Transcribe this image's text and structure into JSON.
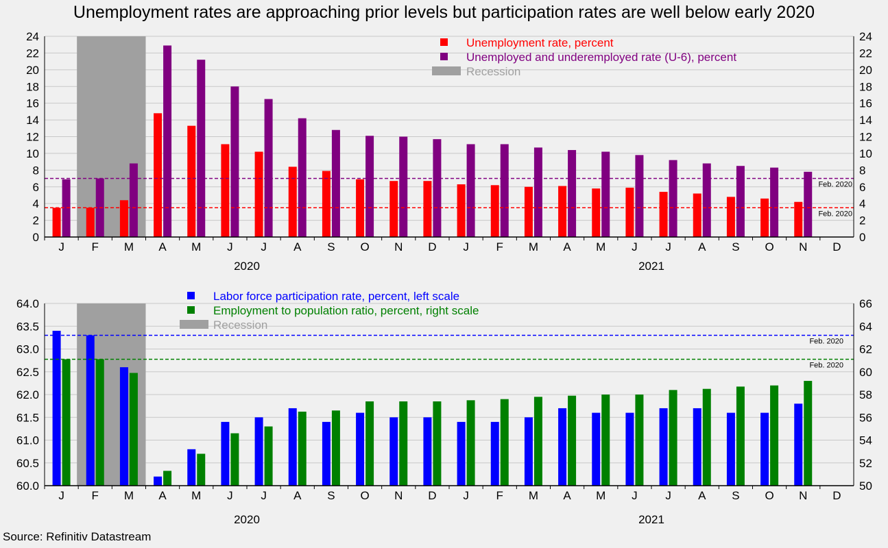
{
  "title": "Unemployment rates are approaching prior levels but participation rates are well below early 2020",
  "source": "Source: Refinitiv Datastream",
  "colors": {
    "unemployment": "#ff0000",
    "u6": "#800080",
    "lfpr": "#0000ff",
    "epop": "#008000",
    "recession": "#a0a0a0",
    "grid": "#c8c8c8"
  },
  "chart_data": [
    {
      "type": "bar",
      "categories": [
        "J",
        "F",
        "M",
        "A",
        "M",
        "J",
        "J",
        "A",
        "S",
        "O",
        "N",
        "D",
        "J",
        "F",
        "M",
        "A",
        "M",
        "J",
        "J",
        "A",
        "S",
        "O",
        "N",
        "D"
      ],
      "year_labels": [
        {
          "label": "2020",
          "start": 0,
          "end": 11
        },
        {
          "label": "2021",
          "start": 12,
          "end": 23
        }
      ],
      "ylim": [
        0,
        24
      ],
      "y_ticks": [
        0,
        2,
        4,
        6,
        8,
        10,
        12,
        14,
        16,
        18,
        20,
        22,
        24
      ],
      "series": [
        {
          "name": "Unemployment rate, percent",
          "color": "#ff0000",
          "values": [
            3.5,
            3.5,
            4.4,
            14.8,
            13.3,
            11.1,
            10.2,
            8.4,
            7.9,
            6.9,
            6.7,
            6.7,
            6.3,
            6.2,
            6.0,
            6.1,
            5.8,
            5.9,
            5.4,
            5.2,
            4.8,
            4.6,
            4.2,
            null
          ]
        },
        {
          "name": "Unemployed and underemployed rate (U-6), percent",
          "color": "#800080",
          "values": [
            6.9,
            7.0,
            8.8,
            22.9,
            21.2,
            18.0,
            16.5,
            14.2,
            12.8,
            12.1,
            12.0,
            11.7,
            11.1,
            11.1,
            10.7,
            10.4,
            10.2,
            9.8,
            9.2,
            8.8,
            8.5,
            8.3,
            7.8,
            null
          ]
        }
      ],
      "recession": {
        "label": "Recession",
        "start_index": 1,
        "end_index": 2
      },
      "reference_lines": [
        {
          "label": "Feb. 2020",
          "value": 7.0,
          "color": "#800080"
        },
        {
          "label": "Feb. 2020",
          "value": 3.5,
          "color": "#ff0000"
        }
      ],
      "legend_position": "top-center"
    },
    {
      "type": "bar",
      "categories": [
        "J",
        "F",
        "M",
        "A",
        "M",
        "J",
        "J",
        "A",
        "S",
        "O",
        "N",
        "D",
        "J",
        "F",
        "M",
        "A",
        "M",
        "J",
        "J",
        "A",
        "S",
        "O",
        "N",
        "D"
      ],
      "year_labels": [
        {
          "label": "2020",
          "start": 0,
          "end": 11
        },
        {
          "label": "2021",
          "start": 12,
          "end": 23
        }
      ],
      "ylim_left": [
        60.0,
        64.0
      ],
      "y_ticks_left": [
        "60.0",
        "60.5",
        "61.0",
        "61.5",
        "62.0",
        "62.5",
        "63.0",
        "63.5",
        "64.0"
      ],
      "ylim_right": [
        50,
        66
      ],
      "y_ticks_right": [
        50,
        52,
        54,
        56,
        58,
        60,
        62,
        64,
        66
      ],
      "series": [
        {
          "name": "Labor force participation rate, percent, left scale",
          "color": "#0000ff",
          "axis": "left",
          "values": [
            63.4,
            63.3,
            62.6,
            60.2,
            60.8,
            61.4,
            61.5,
            61.7,
            61.4,
            61.6,
            61.5,
            61.5,
            61.4,
            61.4,
            61.5,
            61.7,
            61.6,
            61.6,
            61.7,
            61.7,
            61.6,
            61.6,
            61.8,
            null
          ]
        },
        {
          "name": "Employment to population ratio, percent, right scale",
          "color": "#008000",
          "axis": "right",
          "values": [
            61.1,
            61.1,
            59.9,
            51.3,
            52.8,
            54.6,
            55.2,
            56.5,
            56.6,
            57.4,
            57.4,
            57.4,
            57.5,
            57.6,
            57.8,
            57.9,
            58.0,
            58.0,
            58.4,
            58.5,
            58.7,
            58.8,
            59.2,
            null
          ]
        }
      ],
      "recession": {
        "label": "Recession",
        "start_index": 1,
        "end_index": 2
      },
      "reference_lines": [
        {
          "label": "Feb. 2020",
          "value": 63.3,
          "axis": "left",
          "color": "#0000ff"
        },
        {
          "label": "Feb. 2020",
          "value": 61.1,
          "axis": "right",
          "color": "#008000"
        }
      ],
      "legend_position": "top-left"
    }
  ]
}
